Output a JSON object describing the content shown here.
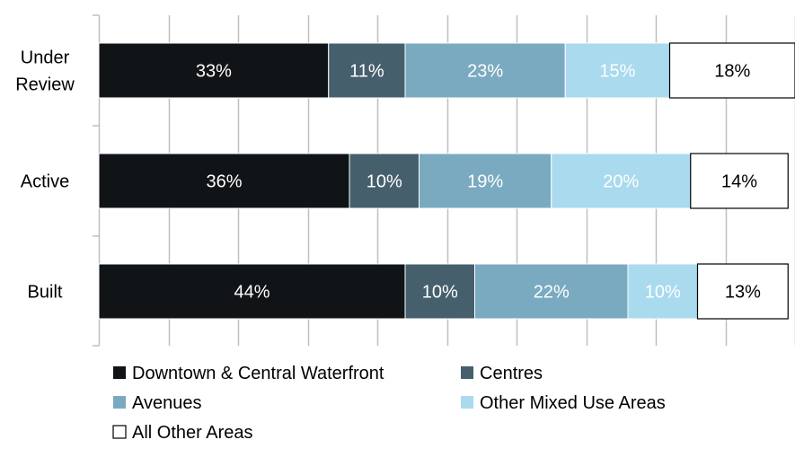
{
  "chart_data": {
    "type": "bar",
    "orientation": "horizontal",
    "stacked": true,
    "normalized": true,
    "categories": [
      "Under Review",
      "Active",
      "Built"
    ],
    "category_lines": [
      [
        "Under",
        "Review"
      ],
      [
        "Active"
      ],
      [
        "Built"
      ]
    ],
    "series": [
      {
        "name": "Downtown & Central Waterfront",
        "color": "#111417",
        "label_color": "#ffffff",
        "values": [
          33,
          36,
          44
        ]
      },
      {
        "name": "Centres",
        "color": "#465f6c",
        "label_color": "#ffffff",
        "values": [
          11,
          10,
          10
        ]
      },
      {
        "name": "Avenues",
        "color": "#7aaac0",
        "label_color": "#ffffff",
        "values": [
          23,
          19,
          22
        ]
      },
      {
        "name": "Other Mixed Use Areas",
        "color": "#a9daee",
        "label_color": "#ffffff",
        "values": [
          15,
          20,
          10
        ]
      },
      {
        "name": "All Other Areas",
        "color": "#ffffff",
        "label_color": "#000000",
        "values": [
          18,
          14,
          13
        ]
      }
    ],
    "value_suffix": "%",
    "xlim": [
      0,
      100
    ],
    "grid": true,
    "legend_position": "bottom"
  }
}
